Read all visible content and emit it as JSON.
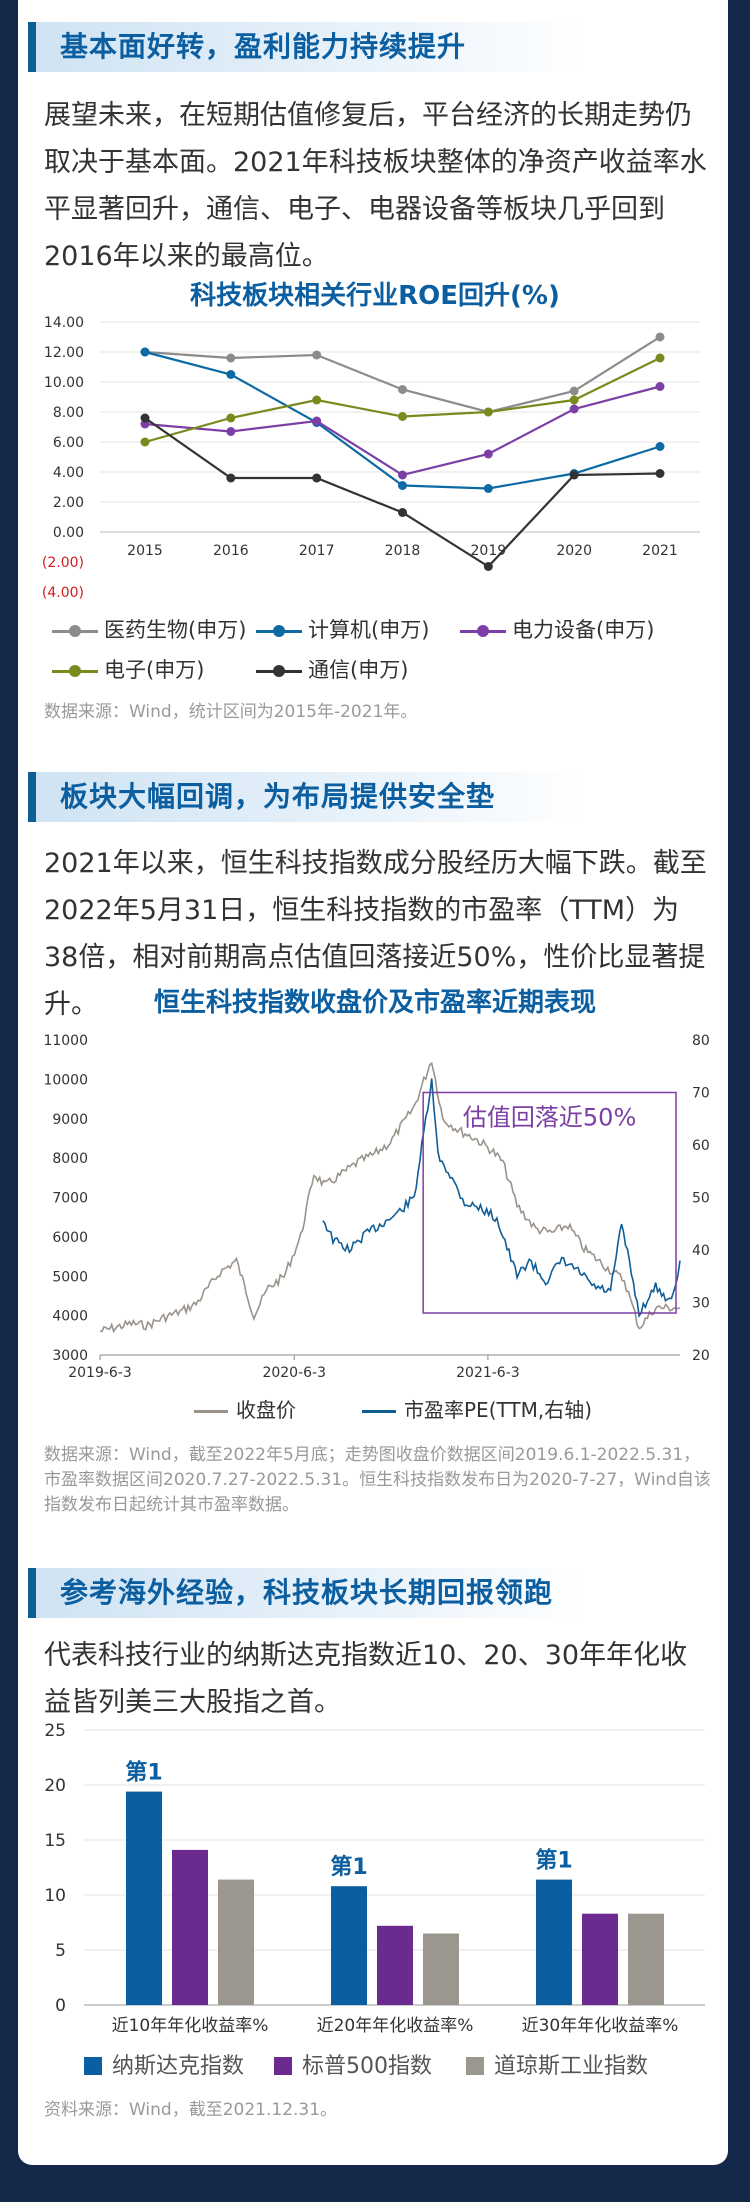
{
  "section1": {
    "title": "基本面好转，盈利能力持续提升",
    "paragraph": "展望未来，在短期估值修复后，平台经济的长期走势仍取决于基本面。2021年科技板块整体的净资产收益率水平显著回升，通信、电子、电器设备等板块几乎回到2016年以来的最高位。"
  },
  "section2": {
    "title": "板块大幅回调，为布局提供安全垫",
    "paragraph": "2021年以来，恒生科技指数成分股经历大幅下跌。截至2022年5月31日，恒生科技指数的市盈率（TTM）为38倍，相对前期高点估值回落接近50%，性价比显著提升。"
  },
  "section3": {
    "title": "参考海外经验，科技板块长期回报领跑",
    "paragraph": "代表科技行业的纳斯达克指数近10、20、30年年化收益皆列美三大股指之首。"
  },
  "colors": {
    "brand_blue": "#0b5ea0",
    "medicine": "#8c8c8c",
    "computer": "#0e6aa3",
    "power": "#7b3fa6",
    "electronics": "#7b8a1e",
    "telecom": "#333333",
    "close_price": "#9a9389",
    "pe": "#0f5e96",
    "nasdaq": "#0b5ea0",
    "sp500": "#6b2a8f",
    "dow": "#9b978f",
    "highlight_box": "#7b3fa6",
    "negative_tick": "#cc1f1f"
  },
  "chart_data": [
    {
      "type": "line",
      "title": "科技板块相关行业ROE回升(%)",
      "x": [
        "2015",
        "2016",
        "2017",
        "2018",
        "2019",
        "2020",
        "2021"
      ],
      "y_ticks": [
        "14.00",
        "12.00",
        "10.00",
        "8.00",
        "6.00",
        "4.00",
        "2.00",
        "0.00",
        "(2.00)",
        "(4.00)"
      ],
      "ylim": [
        -4,
        14
      ],
      "grid": true,
      "legend_position": "bottom",
      "series": [
        {
          "name": "医药生物(申万)",
          "key": "medicine",
          "values": [
            12.0,
            11.6,
            11.8,
            9.5,
            8.0,
            9.4,
            13.0
          ]
        },
        {
          "name": "计算机(申万)",
          "key": "computer",
          "values": [
            12.0,
            10.5,
            7.3,
            3.1,
            2.9,
            3.9,
            5.7
          ]
        },
        {
          "name": "电力设备(申万)",
          "key": "power",
          "values": [
            7.2,
            6.7,
            7.4,
            3.8,
            5.2,
            8.2,
            9.7
          ]
        },
        {
          "name": "电子(申万)",
          "key": "electronics",
          "values": [
            6.0,
            7.6,
            8.8,
            7.7,
            8.0,
            8.8,
            11.6
          ]
        },
        {
          "name": "通信(申万)",
          "key": "telecom",
          "values": [
            7.6,
            3.6,
            3.6,
            1.3,
            -2.3,
            3.8,
            3.9
          ]
        }
      ],
      "source": "数据来源：Wind，统计区间为2015年-2021年。"
    },
    {
      "type": "line",
      "title": "恒生科技指数收盘价及市盈率近期表现",
      "x_tick_labels": [
        "2019-6-3",
        "2020-6-3",
        "2021-6-3"
      ],
      "y_left_ticks": [
        3000,
        4000,
        5000,
        6000,
        7000,
        8000,
        9000,
        10000,
        11000
      ],
      "y_right_ticks": [
        20,
        30,
        40,
        50,
        60,
        70,
        80
      ],
      "ylim_left": [
        3000,
        11000
      ],
      "ylim_right": [
        20,
        80
      ],
      "legend_position": "bottom",
      "annotation": "估值回落近50%",
      "series": [
        {
          "name": "收盘价",
          "key": "close_price",
          "axis": "left",
          "points": [
            [
              "2019-06-03",
              3600
            ],
            [
              "2019-08-01",
              3800
            ],
            [
              "2019-09-01",
              3750
            ],
            [
              "2019-10-01",
              3950
            ],
            [
              "2019-11-01",
              4100
            ],
            [
              "2019-12-01",
              4300
            ],
            [
              "2020-01-15",
              5100
            ],
            [
              "2020-02-15",
              5400
            ],
            [
              "2020-03-19",
              4000
            ],
            [
              "2020-04-15",
              4700
            ],
            [
              "2020-05-15",
              5000
            ],
            [
              "2020-06-15",
              6000
            ],
            [
              "2020-07-10",
              7600
            ],
            [
              "2020-08-01",
              7300
            ],
            [
              "2020-09-01",
              7600
            ],
            [
              "2020-10-01",
              7900
            ],
            [
              "2020-11-01",
              8100
            ],
            [
              "2020-12-01",
              8400
            ],
            [
              "2021-01-15",
              9300
            ],
            [
              "2021-02-17",
              10500
            ],
            [
              "2021-03-10",
              9000
            ],
            [
              "2021-04-10",
              8700
            ],
            [
              "2021-05-10",
              8500
            ],
            [
              "2021-06-10",
              8200
            ],
            [
              "2021-07-01",
              7900
            ],
            [
              "2021-07-28",
              6800
            ],
            [
              "2021-09-01",
              6200
            ],
            [
              "2021-10-01",
              6100
            ],
            [
              "2021-11-01",
              6300
            ],
            [
              "2021-12-01",
              5700
            ],
            [
              "2022-01-15",
              5200
            ],
            [
              "2022-02-15",
              4900
            ],
            [
              "2022-03-15",
              3700
            ],
            [
              "2022-04-15",
              4200
            ],
            [
              "2022-05-31",
              4200
            ]
          ]
        },
        {
          "name": "市盈率PE(TTM,右轴)",
          "key": "pe",
          "axis": "right",
          "points": [
            [
              "2020-07-27",
              46
            ],
            [
              "2020-08-15",
              42
            ],
            [
              "2020-09-15",
              40
            ],
            [
              "2020-10-15",
              43
            ],
            [
              "2020-11-15",
              45
            ],
            [
              "2020-12-15",
              47
            ],
            [
              "2021-01-15",
              50
            ],
            [
              "2021-02-17",
              72
            ],
            [
              "2021-03-01",
              58
            ],
            [
              "2021-03-20",
              55
            ],
            [
              "2021-04-20",
              49
            ],
            [
              "2021-05-20",
              48
            ],
            [
              "2021-06-20",
              46
            ],
            [
              "2021-07-28",
              35
            ],
            [
              "2021-08-20",
              38
            ],
            [
              "2021-09-20",
              34
            ],
            [
              "2021-10-20",
              38
            ],
            [
              "2021-11-20",
              36
            ],
            [
              "2021-12-20",
              33
            ],
            [
              "2022-01-20",
              32
            ],
            [
              "2022-02-10",
              45
            ],
            [
              "2022-03-15",
              28
            ],
            [
              "2022-04-15",
              33
            ],
            [
              "2022-05-15",
              30
            ],
            [
              "2022-05-31",
              38
            ]
          ]
        }
      ],
      "source": "数据来源：Wind，截至2022年5月底；走势图收盘价数据区间2019.6.1-2022.5.31，市盈率数据区间2020.7.27-2022.5.31。恒生科技指数发布日为2020-7-27，Wind自该指数发布日起统计其市盈率数据。"
    },
    {
      "type": "bar",
      "categories": [
        "近10年年化收益率%",
        "近20年年化收益率%",
        "近30年年化收益率%"
      ],
      "y_ticks": [
        0,
        5,
        10,
        15,
        20,
        25
      ],
      "ylim": [
        0,
        25
      ],
      "legend_position": "bottom",
      "rank_labels": [
        "第1",
        "第1",
        "第1"
      ],
      "series": [
        {
          "name": "纳斯达克指数",
          "key": "nasdaq",
          "values": [
            19.4,
            10.8,
            11.4
          ]
        },
        {
          "name": "标普500指数",
          "key": "sp500",
          "values": [
            14.1,
            7.2,
            8.3
          ]
        },
        {
          "name": "道琼斯工业指数",
          "key": "dow",
          "values": [
            11.4,
            6.5,
            8.3
          ]
        }
      ],
      "source": "资料来源：Wind，截至2021.12.31。"
    }
  ]
}
